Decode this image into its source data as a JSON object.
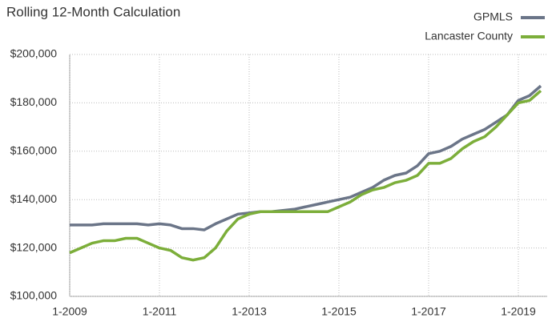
{
  "chart_data": {
    "type": "line",
    "title": "Rolling 12-Month Calculation",
    "categories": [
      "1-2009",
      null,
      null,
      null,
      null,
      null,
      null,
      null,
      "1-2011",
      null,
      null,
      null,
      null,
      null,
      null,
      null,
      "1-2013",
      null,
      null,
      null,
      null,
      null,
      null,
      null,
      "1-2015",
      null,
      null,
      null,
      null,
      null,
      null,
      null,
      "1-2017",
      null,
      null,
      null,
      null,
      null,
      null,
      null,
      "1-2019",
      null,
      null
    ],
    "series": [
      {
        "name": "GPMLS",
        "color": "#6b7588",
        "values": [
          129.5,
          129.5,
          129.5,
          130,
          130,
          130,
          130,
          129.5,
          130,
          129.5,
          128,
          128,
          127.5,
          130,
          132,
          134,
          134.5,
          135,
          135,
          135.5,
          136,
          137,
          138,
          139,
          140,
          141,
          143,
          145,
          148,
          150,
          151,
          154,
          159,
          160,
          162,
          165,
          167,
          169,
          172,
          175,
          181,
          183,
          187
        ]
      },
      {
        "name": "Lancaster County",
        "color": "#7cae3a",
        "values": [
          118,
          120,
          122,
          123,
          123,
          124,
          124,
          122,
          120,
          119,
          116,
          115,
          116,
          120,
          127,
          132,
          134,
          135,
          135,
          135,
          135,
          135,
          135,
          135,
          137,
          139,
          142,
          144,
          145,
          147,
          148,
          150,
          155,
          155,
          157,
          161,
          164,
          166,
          170,
          175,
          180,
          181,
          185
        ]
      }
    ],
    "value_multiplier_note": null,
    "ylim": [
      100,
      200
    ],
    "yticks": [
      {
        "value": 100,
        "label": "$100,000"
      },
      {
        "value": 120,
        "label": "$120,000"
      },
      {
        "value": 140,
        "label": "$140,000"
      },
      {
        "value": 160,
        "label": "$160,000"
      },
      {
        "value": 180,
        "label": "$180,000"
      },
      {
        "value": 200,
        "label": "$200,000"
      }
    ],
    "grid": true,
    "legend": "top-right"
  }
}
